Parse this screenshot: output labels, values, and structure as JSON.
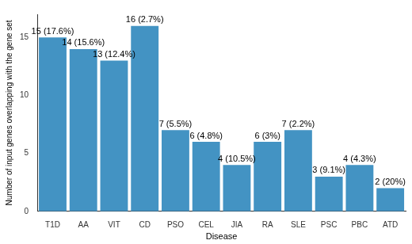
{
  "chart_data": {
    "type": "bar",
    "x_label": "Disease",
    "y_label": "Number of input genes overlapping with the gene set",
    "categories": [
      "T1D",
      "AA",
      "VIT",
      "CD",
      "PSO",
      "CEL",
      "JIA",
      "RA",
      "SLE",
      "PSC",
      "PBC",
      "ATD"
    ],
    "values": [
      15,
      14,
      13,
      16,
      7,
      6,
      4,
      6,
      7,
      3,
      4,
      2
    ],
    "value_labels": [
      "15 (17.6%)",
      "14 (15.6%)",
      "13 (12.4%)",
      "16 (2.7%)",
      "7 (5.5%)",
      "6 (4.8%)",
      "4 (10.5%)",
      "6 (3%)",
      "7 (2.2%)",
      "3 (9.1%)",
      "4 (4.3%)",
      "2 (20%)"
    ],
    "data_labels": true,
    "color": "#4393c3",
    "ylim": [
      0,
      17
    ],
    "yticks": [
      0,
      5,
      10,
      15
    ],
    "grid": false
  }
}
